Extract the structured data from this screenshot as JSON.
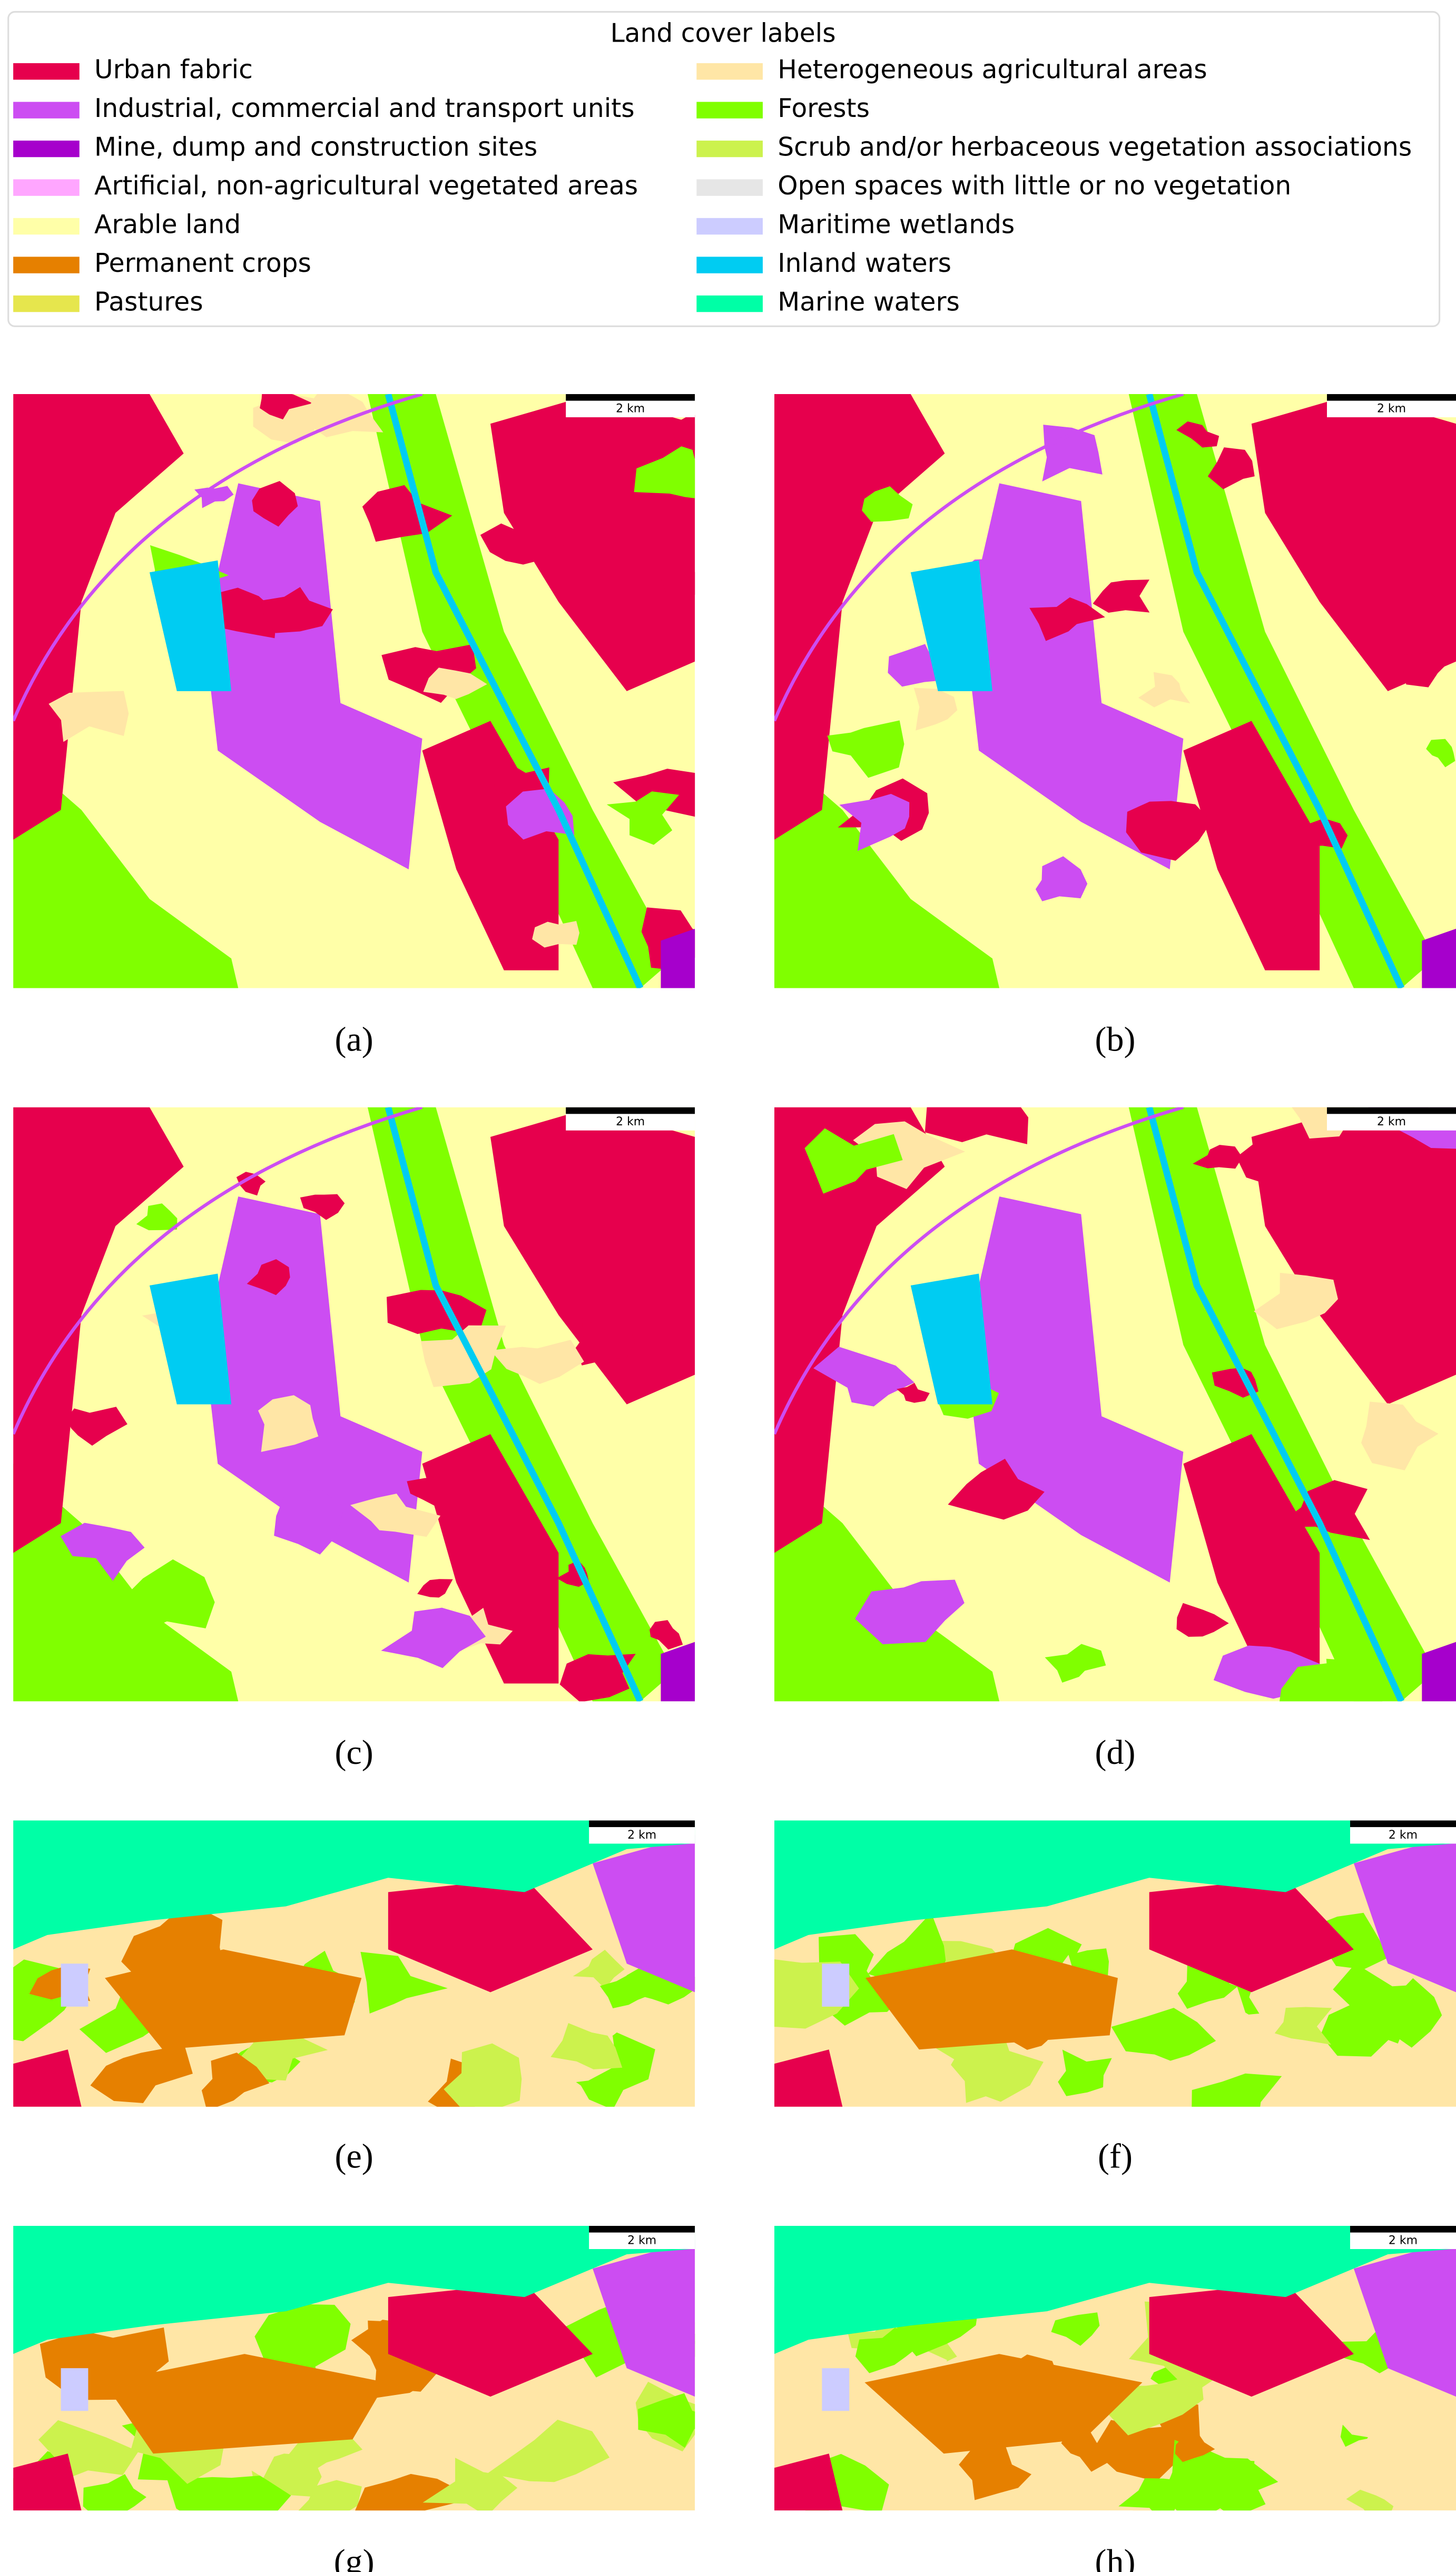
{
  "legend": {
    "title": "Land cover labels",
    "items": [
      {
        "label": "Urban fabric",
        "color": "#e6004d"
      },
      {
        "label": "Industrial, commercial and transport units",
        "color": "#cc4df2"
      },
      {
        "label": "Mine, dump and construction sites",
        "color": "#a600cc"
      },
      {
        "label": "Artificial, non-agricultural vegetated areas",
        "color": "#ffa6ff"
      },
      {
        "label": "Arable land",
        "color": "#ffffa8"
      },
      {
        "label": "Permanent crops",
        "color": "#e68000"
      },
      {
        "label": "Pastures",
        "color": "#e6e64d"
      },
      {
        "label": "Heterogeneous agricultural areas",
        "color": "#ffe6a6"
      },
      {
        "label": "Forests",
        "color": "#80ff00"
      },
      {
        "label": "Scrub and/or herbaceous vegetation associations",
        "color": "#ccf24d"
      },
      {
        "label": "Open spaces with little or no vegetation",
        "color": "#e6e6e6"
      },
      {
        "label": "Maritime wetlands",
        "color": "#ccccff"
      },
      {
        "label": "Inland waters",
        "color": "#00ccf2"
      },
      {
        "label": "Marine waters",
        "color": "#00ffa6"
      }
    ]
  },
  "panels": [
    {
      "label": "(a)",
      "scale_bar": "2 km"
    },
    {
      "label": "(b)",
      "scale_bar": "2 km"
    },
    {
      "label": "(c)",
      "scale_bar": "2 km"
    },
    {
      "label": "(d)",
      "scale_bar": "2 km"
    },
    {
      "label": "(e)",
      "scale_bar": "2 km"
    },
    {
      "label": "(f)",
      "scale_bar": "2 km"
    },
    {
      "label": "(g)",
      "scale_bar": "2 km"
    },
    {
      "label": "(h)",
      "scale_bar": "2 km"
    }
  ]
}
